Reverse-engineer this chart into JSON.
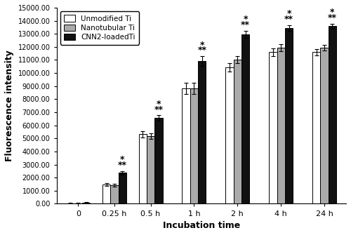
{
  "categories": [
    "0",
    "0.25 h",
    "0.5 h",
    "1 h",
    "2 h",
    "4 h",
    "24 h"
  ],
  "unmodified_ti": [
    50,
    1480,
    5320,
    8820,
    10420,
    11600,
    11600
  ],
  "nanotubular_ti": [
    50,
    1430,
    5180,
    8840,
    11030,
    11940,
    11950
  ],
  "cnn2_loaded_ti": [
    100,
    2380,
    6560,
    10920,
    12970,
    13440,
    13580
  ],
  "unmodified_ti_err": [
    30,
    120,
    230,
    430,
    320,
    280,
    240
  ],
  "nanotubular_ti_err": [
    20,
    110,
    200,
    420,
    280,
    260,
    220
  ],
  "cnn2_loaded_ti_err": [
    30,
    130,
    200,
    380,
    270,
    240,
    200
  ],
  "bar_colors": [
    "white",
    "#aaaaaa",
    "#111111"
  ],
  "bar_edgecolor": "black",
  "ylabel": "Fluorescence intensity",
  "xlabel": "Incubation time",
  "ylim": [
    0,
    15000
  ],
  "yticks": [
    0,
    1000,
    2000,
    3000,
    4000,
    5000,
    6000,
    7000,
    8000,
    9000,
    10000,
    11000,
    12000,
    13000,
    14000,
    15000
  ],
  "ytick_labels": [
    "0.00",
    "1000.00",
    "2000.00",
    "3000.00",
    "4000.00",
    "5000.00",
    "6000.00",
    "7000.00",
    "8000.00",
    "9000.00",
    "10000.00",
    "11000.00",
    "12000.00",
    "13000.00",
    "14000.00",
    "15000.00"
  ],
  "legend_labels": [
    "Unmodified Ti",
    "Nanotubular Ti",
    "CNN2-loadedTi"
  ],
  "significance_single": [
    false,
    true,
    true,
    true,
    true,
    true,
    true
  ],
  "significance_double": [
    false,
    true,
    true,
    true,
    true,
    true,
    true
  ],
  "bar_width": 0.22,
  "sig_star_fontsize": 9
}
